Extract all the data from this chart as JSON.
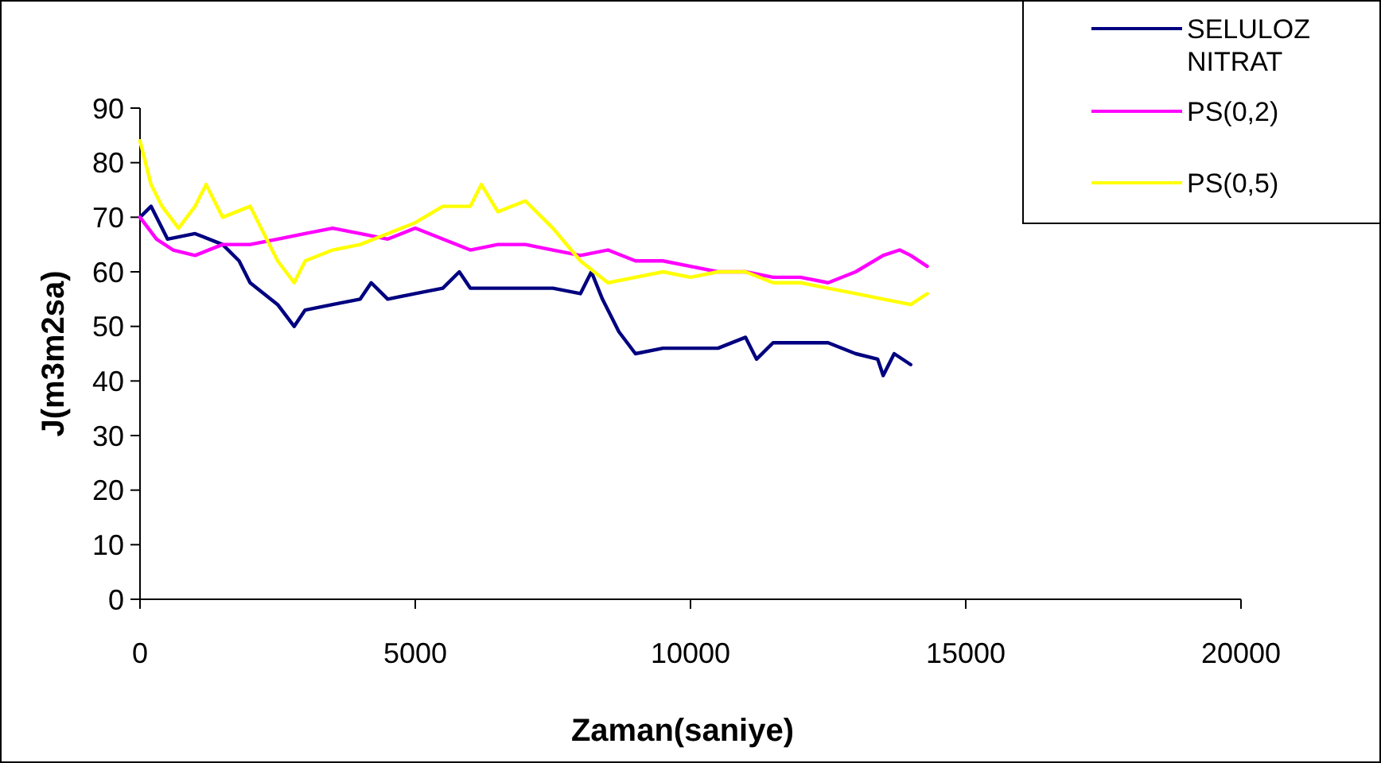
{
  "chart_data": {
    "type": "line",
    "xlabel": "Zaman(saniye)",
    "ylabel": "J(m3m2sa)",
    "xlim": [
      0,
      20000
    ],
    "xticks": [
      0,
      5000,
      10000,
      15000,
      20000
    ],
    "ylim": [
      0,
      90
    ],
    "yticks": [
      0,
      10,
      20,
      30,
      40,
      50,
      60,
      70,
      80,
      90
    ],
    "grid": false,
    "legend": "top right",
    "marker": "none",
    "line_style": "solid",
    "series": [
      {
        "name": "SELULOZ NITRAT",
        "color": "#000080",
        "x": [
          0,
          200,
          500,
          1000,
          1500,
          1800,
          2000,
          2500,
          2800,
          3000,
          3500,
          4000,
          4200,
          4500,
          5000,
          5500,
          5800,
          6000,
          6500,
          7000,
          7500,
          8000,
          8200,
          8400,
          8700,
          9000,
          9500,
          10000,
          10500,
          11000,
          11200,
          11500,
          12000,
          12500,
          13000,
          13400,
          13500,
          13700,
          14000
        ],
        "values": [
          70,
          72,
          66,
          67,
          65,
          62,
          58,
          54,
          50,
          53,
          54,
          55,
          58,
          55,
          56,
          57,
          60,
          57,
          57,
          57,
          57,
          56,
          60,
          55,
          49,
          45,
          46,
          46,
          46,
          48,
          44,
          47,
          47,
          47,
          45,
          44,
          41,
          45,
          43
        ]
      },
      {
        "name": "PS(0,2)",
        "color": "#ff00ff",
        "x": [
          0,
          300,
          600,
          1000,
          1500,
          2000,
          2500,
          3000,
          3500,
          4000,
          4500,
          5000,
          5500,
          6000,
          6500,
          7000,
          7500,
          8000,
          8500,
          9000,
          9500,
          10000,
          10500,
          11000,
          11500,
          12000,
          12500,
          13000,
          13500,
          13800,
          14000,
          14300
        ],
        "values": [
          70,
          66,
          64,
          63,
          65,
          65,
          66,
          67,
          68,
          67,
          66,
          68,
          66,
          64,
          65,
          65,
          64,
          63,
          64,
          62,
          62,
          61,
          60,
          60,
          59,
          59,
          58,
          60,
          63,
          64,
          63,
          61
        ]
      },
      {
        "name": "PS(0,5)",
        "color": "#ffff00",
        "x": [
          0,
          200,
          400,
          700,
          1000,
          1200,
          1500,
          2000,
          2500,
          2800,
          3000,
          3500,
          4000,
          4500,
          5000,
          5500,
          6000,
          6200,
          6500,
          7000,
          7500,
          8000,
          8500,
          9000,
          9500,
          10000,
          10500,
          11000,
          11500,
          12000,
          12500,
          13000,
          13500,
          14000,
          14300
        ],
        "values": [
          84,
          76,
          72,
          68,
          72,
          76,
          70,
          72,
          62,
          58,
          62,
          64,
          65,
          67,
          69,
          72,
          72,
          76,
          71,
          73,
          68,
          62,
          58,
          59,
          60,
          59,
          60,
          60,
          58,
          58,
          57,
          56,
          55,
          54,
          56
        ]
      }
    ]
  }
}
